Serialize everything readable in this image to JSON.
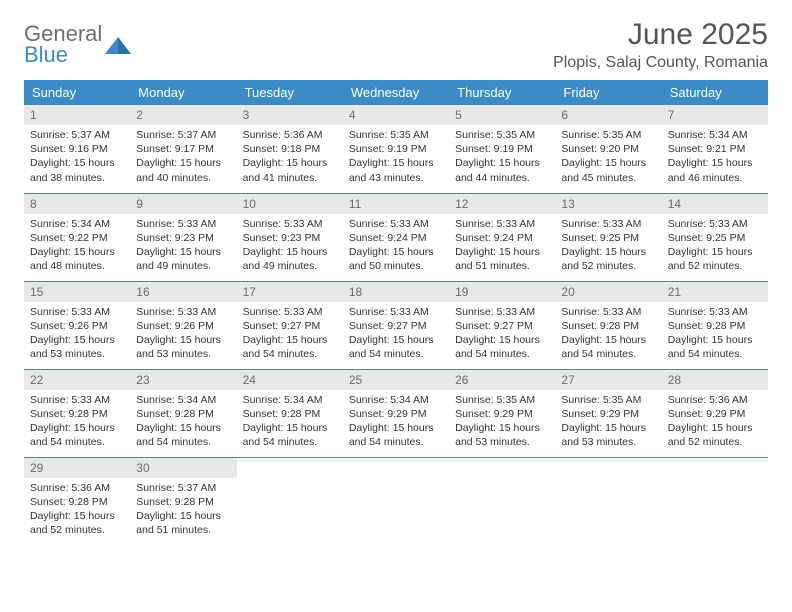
{
  "logo": {
    "text_top": "General",
    "text_bottom": "Blue",
    "mark_color": "#3b8bc6",
    "gray": "#6e6e6e"
  },
  "title": "June 2025",
  "location": "Plopis, Salaj County, Romania",
  "header_bg": "#3b8bc6",
  "header_fg": "#ffffff",
  "daynum_bg": "#e8e8e8",
  "daynum_fg": "#6a6a6a",
  "cell_border": "#3b8bc6",
  "weekdays": [
    "Sunday",
    "Monday",
    "Tuesday",
    "Wednesday",
    "Thursday",
    "Friday",
    "Saturday"
  ],
  "days": [
    {
      "n": 1,
      "sunrise": "5:37 AM",
      "sunset": "9:16 PM",
      "daylight": "15 hours and 38 minutes."
    },
    {
      "n": 2,
      "sunrise": "5:37 AM",
      "sunset": "9:17 PM",
      "daylight": "15 hours and 40 minutes."
    },
    {
      "n": 3,
      "sunrise": "5:36 AM",
      "sunset": "9:18 PM",
      "daylight": "15 hours and 41 minutes."
    },
    {
      "n": 4,
      "sunrise": "5:35 AM",
      "sunset": "9:19 PM",
      "daylight": "15 hours and 43 minutes."
    },
    {
      "n": 5,
      "sunrise": "5:35 AM",
      "sunset": "9:19 PM",
      "daylight": "15 hours and 44 minutes."
    },
    {
      "n": 6,
      "sunrise": "5:35 AM",
      "sunset": "9:20 PM",
      "daylight": "15 hours and 45 minutes."
    },
    {
      "n": 7,
      "sunrise": "5:34 AM",
      "sunset": "9:21 PM",
      "daylight": "15 hours and 46 minutes."
    },
    {
      "n": 8,
      "sunrise": "5:34 AM",
      "sunset": "9:22 PM",
      "daylight": "15 hours and 48 minutes."
    },
    {
      "n": 9,
      "sunrise": "5:33 AM",
      "sunset": "9:23 PM",
      "daylight": "15 hours and 49 minutes."
    },
    {
      "n": 10,
      "sunrise": "5:33 AM",
      "sunset": "9:23 PM",
      "daylight": "15 hours and 49 minutes."
    },
    {
      "n": 11,
      "sunrise": "5:33 AM",
      "sunset": "9:24 PM",
      "daylight": "15 hours and 50 minutes."
    },
    {
      "n": 12,
      "sunrise": "5:33 AM",
      "sunset": "9:24 PM",
      "daylight": "15 hours and 51 minutes."
    },
    {
      "n": 13,
      "sunrise": "5:33 AM",
      "sunset": "9:25 PM",
      "daylight": "15 hours and 52 minutes."
    },
    {
      "n": 14,
      "sunrise": "5:33 AM",
      "sunset": "9:25 PM",
      "daylight": "15 hours and 52 minutes."
    },
    {
      "n": 15,
      "sunrise": "5:33 AM",
      "sunset": "9:26 PM",
      "daylight": "15 hours and 53 minutes."
    },
    {
      "n": 16,
      "sunrise": "5:33 AM",
      "sunset": "9:26 PM",
      "daylight": "15 hours and 53 minutes."
    },
    {
      "n": 17,
      "sunrise": "5:33 AM",
      "sunset": "9:27 PM",
      "daylight": "15 hours and 54 minutes."
    },
    {
      "n": 18,
      "sunrise": "5:33 AM",
      "sunset": "9:27 PM",
      "daylight": "15 hours and 54 minutes."
    },
    {
      "n": 19,
      "sunrise": "5:33 AM",
      "sunset": "9:27 PM",
      "daylight": "15 hours and 54 minutes."
    },
    {
      "n": 20,
      "sunrise": "5:33 AM",
      "sunset": "9:28 PM",
      "daylight": "15 hours and 54 minutes."
    },
    {
      "n": 21,
      "sunrise": "5:33 AM",
      "sunset": "9:28 PM",
      "daylight": "15 hours and 54 minutes."
    },
    {
      "n": 22,
      "sunrise": "5:33 AM",
      "sunset": "9:28 PM",
      "daylight": "15 hours and 54 minutes."
    },
    {
      "n": 23,
      "sunrise": "5:34 AM",
      "sunset": "9:28 PM",
      "daylight": "15 hours and 54 minutes."
    },
    {
      "n": 24,
      "sunrise": "5:34 AM",
      "sunset": "9:28 PM",
      "daylight": "15 hours and 54 minutes."
    },
    {
      "n": 25,
      "sunrise": "5:34 AM",
      "sunset": "9:29 PM",
      "daylight": "15 hours and 54 minutes."
    },
    {
      "n": 26,
      "sunrise": "5:35 AM",
      "sunset": "9:29 PM",
      "daylight": "15 hours and 53 minutes."
    },
    {
      "n": 27,
      "sunrise": "5:35 AM",
      "sunset": "9:29 PM",
      "daylight": "15 hours and 53 minutes."
    },
    {
      "n": 28,
      "sunrise": "5:36 AM",
      "sunset": "9:29 PM",
      "daylight": "15 hours and 52 minutes."
    },
    {
      "n": 29,
      "sunrise": "5:36 AM",
      "sunset": "9:28 PM",
      "daylight": "15 hours and 52 minutes."
    },
    {
      "n": 30,
      "sunrise": "5:37 AM",
      "sunset": "9:28 PM",
      "daylight": "15 hours and 51 minutes."
    }
  ],
  "labels": {
    "sunrise": "Sunrise:",
    "sunset": "Sunset:",
    "daylight": "Daylight:"
  },
  "start_weekday": 0
}
